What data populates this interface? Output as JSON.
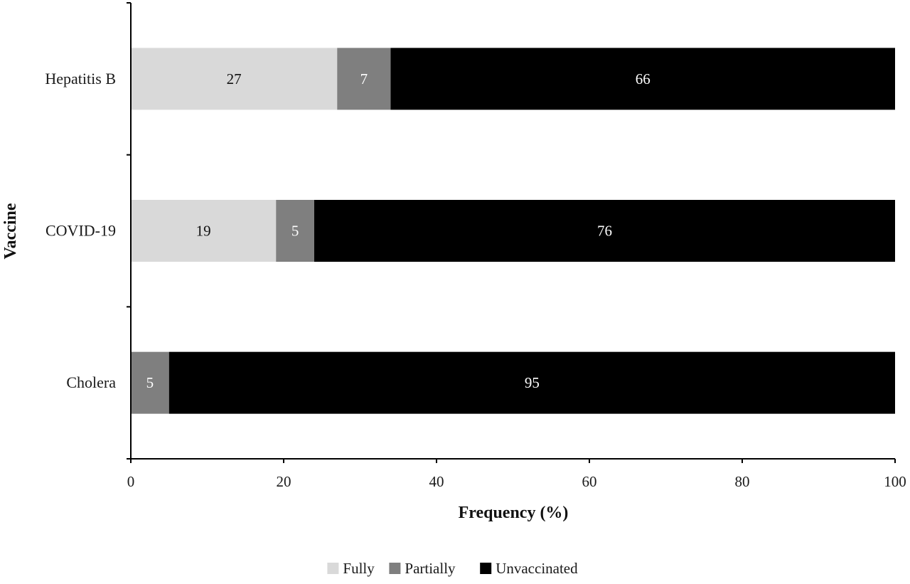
{
  "chart_data": {
    "type": "bar",
    "orientation": "horizontal",
    "stacked": true,
    "title": "",
    "xlabel": "Frequency (%)",
    "ylabel": "Vaccine",
    "xlim": [
      0,
      100
    ],
    "xticks": [
      0,
      20,
      40,
      60,
      80,
      100
    ],
    "grid": false,
    "legend_position": "bottom",
    "categories": [
      "Hepatitis B",
      "COVID-19",
      "Cholera"
    ],
    "series": [
      {
        "name": "Fully",
        "values": [
          27,
          19,
          0
        ],
        "color": "#d9d9d9",
        "label_color": "#111111"
      },
      {
        "name": "Partially",
        "values": [
          7,
          5,
          5
        ],
        "color": "#7f7f7f",
        "label_color": "#ffffff"
      },
      {
        "name": "Unvaccinated",
        "values": [
          66,
          76,
          95
        ],
        "color": "#000000",
        "label_color": "#ffffff"
      }
    ]
  }
}
